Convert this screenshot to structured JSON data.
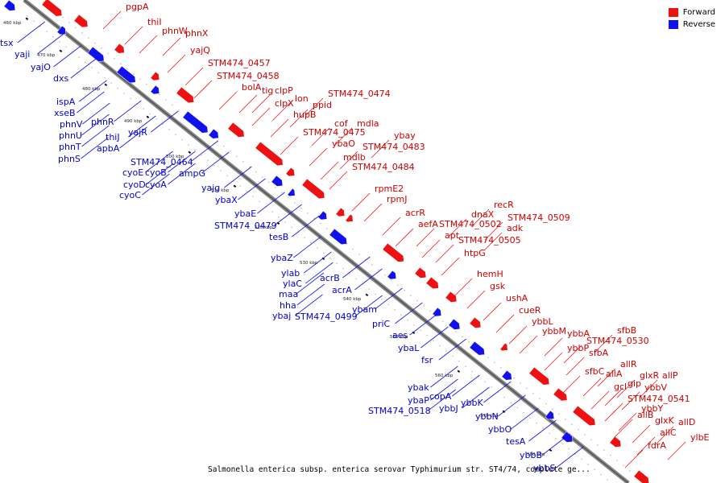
{
  "caption": "Salmonella enterica subsp. enterica serovar Typhimurium str. ST4/74, complete ge...",
  "legend": [
    {
      "label": "Forward",
      "color": "#ee1111"
    },
    {
      "label": "Reverse",
      "color": "#1111ee"
    }
  ],
  "ticks": [
    "460 kbp",
    "470 kbp",
    "480 kbp",
    "490 kbp",
    "500 kbp",
    "510 kbp",
    "520 kbp",
    "530 kbp",
    "540 kbp",
    "550 kbp",
    "560 kbp",
    "570 kbp",
    "580 kbp"
  ],
  "forward_genes": [
    "pgpA",
    "thiI",
    "phnW",
    "phnX",
    "yajQ",
    "STM474_0457",
    "STM474_0458",
    "bolA",
    "tig",
    "clpP",
    "clpX",
    "lon",
    "hupB",
    "ppid",
    "STM474_0474",
    "STM474_0475",
    "cof",
    "mdla",
    "ybay",
    "ybaO",
    "STM474_0483",
    "mdlb",
    "STM474_0484",
    "rpmE2",
    "rpmJ",
    "acrR",
    "aefA",
    "STM474_0502",
    "apt",
    "dnaX",
    "recR",
    "adk",
    "STM474_0509",
    "STM474_0505",
    "htpG",
    "hemH",
    "gsk",
    "ushA",
    "cueR",
    "ybbL",
    "ybbM",
    "ybbA",
    "sfbB",
    "STM474_0530",
    "ybbP",
    "sfbA",
    "sfbC",
    "allR",
    "allA",
    "glxR",
    "allP",
    "gcl",
    "gip",
    "ybbV",
    "STM474_0541",
    "ybbY",
    "allB",
    "glxK",
    "allD",
    "allC",
    "ylbE",
    "fdrA"
  ],
  "reverse_genes": [
    "tsx",
    "yaji",
    "yajO",
    "dxs",
    "ispA",
    "xseB",
    "phnV",
    "phnR",
    "phnU",
    "phnT",
    "thiJ",
    "yajR",
    "apbA",
    "phnS",
    "STM474_0464",
    "cyoE",
    "cyoB",
    "cyoD",
    "cyoA",
    "ampG",
    "cyoC",
    "yajg",
    "ybaX",
    "ybaE",
    "STM474_0479",
    "tesB",
    "ybaZ",
    "ylab",
    "ylaC",
    "acrB",
    "maa",
    "acrA",
    "hha",
    "ybaj",
    "ybam",
    "STM474_0499",
    "priC",
    "aes",
    "ybaL",
    "fsr",
    "ybak",
    "ybaP",
    "copA",
    "STM474_0518",
    "ybbJ",
    "ybbK",
    "ybbN",
    "ybbO",
    "tesA",
    "ybbB",
    "ybbS"
  ]
}
